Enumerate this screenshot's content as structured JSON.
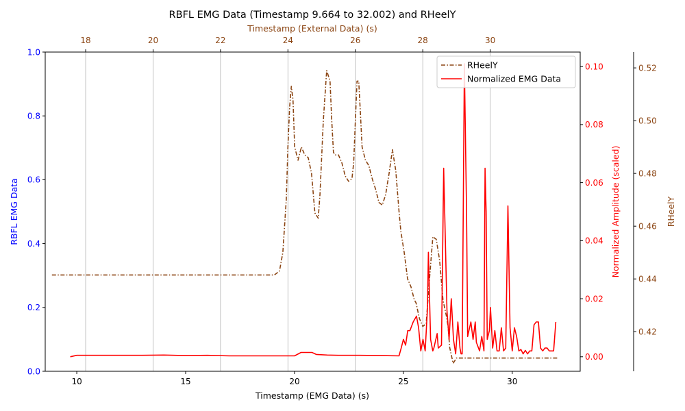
{
  "chart_data": {
    "type": "line",
    "title": "RBFL EMG Data (Timestamp 9.664 to 32.002) and RHeelY",
    "x_bottom": {
      "label": "Timestamp (EMG Data) (s)",
      "range": [
        8.55,
        33.12
      ],
      "ticks": [
        10,
        15,
        20,
        25,
        30
      ],
      "tick_labels": [
        "10",
        "15",
        "20",
        "25",
        "30"
      ],
      "color": "#000000"
    },
    "x_top": {
      "label": "Timestamp (External Data) (s)",
      "range": [
        16.8,
        32.67
      ],
      "ticks": [
        18,
        20,
        22,
        24,
        26,
        28,
        30
      ],
      "tick_labels": [
        "18",
        "20",
        "22",
        "24",
        "26",
        "28",
        "30"
      ],
      "color": "#8B4513",
      "grid": true
    },
    "y_left": {
      "label": "RBFL EMG Data",
      "range": [
        0,
        1
      ],
      "ticks": [
        0,
        0.2,
        0.4,
        0.6,
        0.8,
        1.0
      ],
      "tick_labels": [
        "0.0",
        "0.2",
        "0.4",
        "0.6",
        "0.8",
        "1.0"
      ],
      "color": "#0000ff"
    },
    "y_right1": {
      "label": "Normalized Amplitude (scaled)",
      "range": [
        -0.005,
        0.105
      ],
      "ticks": [
        0,
        0.02,
        0.04,
        0.06,
        0.08,
        0.1
      ],
      "tick_labels": [
        "0.00",
        "0.02",
        "0.04",
        "0.06",
        "0.08",
        "0.10"
      ],
      "color": "#ff0000"
    },
    "y_right2": {
      "label": "RHeelY",
      "range": [
        0.405,
        0.526
      ],
      "ticks": [
        0.42,
        0.44,
        0.46,
        0.48,
        0.5,
        0.52
      ],
      "tick_labels": [
        "0.42",
        "0.44",
        "0.46",
        "0.48",
        "0.50",
        "0.52"
      ],
      "color": "#8B4513"
    },
    "legend": {
      "position": "top-right",
      "entries": [
        "RHeelY",
        "Normalized EMG Data"
      ]
    },
    "series": [
      {
        "name": "RHeelY",
        "axis": "x_top/y_right2",
        "color": "#8B4513",
        "style": "dashdot",
        "x": [
          17.0,
          18.0,
          19.0,
          20.0,
          21.0,
          22.0,
          23.0,
          23.4,
          23.6,
          23.75,
          23.85,
          23.95,
          24.0,
          24.05,
          24.1,
          24.15,
          24.2,
          24.3,
          24.4,
          24.5,
          24.6,
          24.7,
          24.8,
          24.9,
          24.95,
          25.05,
          25.15,
          25.25,
          25.3,
          25.35,
          25.4,
          25.5,
          25.6,
          25.7,
          25.8,
          25.9,
          25.95,
          26.0,
          26.05,
          26.1,
          26.15,
          26.2,
          26.3,
          26.4,
          26.5,
          26.6,
          26.7,
          26.8,
          26.9,
          27.0,
          27.1,
          27.2,
          27.3,
          27.35,
          27.45,
          27.55,
          27.65,
          27.75,
          27.8,
          27.9,
          28.0,
          28.1,
          28.2,
          28.3,
          28.4,
          28.5,
          28.6,
          28.7,
          28.75,
          28.8,
          28.9,
          29.0,
          29.5,
          30.0,
          31.0,
          32.0
        ],
        "values": [
          0.4415,
          0.4415,
          0.4415,
          0.4415,
          0.4415,
          0.4415,
          0.4415,
          0.4415,
          0.4415,
          0.443,
          0.45,
          0.47,
          0.49,
          0.505,
          0.513,
          0.508,
          0.49,
          0.485,
          0.49,
          0.487,
          0.486,
          0.48,
          0.465,
          0.463,
          0.472,
          0.5,
          0.519,
          0.515,
          0.5,
          0.488,
          0.487,
          0.487,
          0.484,
          0.479,
          0.477,
          0.478,
          0.484,
          0.5,
          0.515,
          0.515,
          0.503,
          0.49,
          0.485,
          0.483,
          0.478,
          0.474,
          0.469,
          0.468,
          0.472,
          0.48,
          0.489,
          0.481,
          0.465,
          0.458,
          0.45,
          0.44,
          0.437,
          0.432,
          0.431,
          0.425,
          0.422,
          0.423,
          0.44,
          0.456,
          0.455,
          0.447,
          0.432,
          0.426,
          0.422,
          0.414,
          0.408,
          0.41,
          0.41,
          0.41,
          0.41,
          0.41
        ]
      },
      {
        "name": "Normalized EMG Data",
        "axis": "x_bottom/y_right1",
        "color": "#ff0000",
        "style": "solid",
        "x": [
          9.7,
          10.0,
          11.0,
          12.0,
          13.0,
          14.0,
          15.0,
          16.0,
          17.0,
          18.0,
          19.0,
          20.0,
          20.3,
          20.8,
          21.0,
          21.5,
          22.0,
          23.0,
          24.0,
          24.8,
          24.9,
          25.0,
          25.1,
          25.2,
          25.3,
          25.45,
          25.6,
          25.7,
          25.8,
          25.9,
          26.0,
          26.1,
          26.15,
          26.25,
          26.35,
          26.4,
          26.55,
          26.6,
          26.75,
          26.85,
          27.0,
          27.1,
          27.2,
          27.3,
          27.4,
          27.5,
          27.6,
          27.65,
          27.7,
          27.8,
          27.9,
          27.95,
          28.1,
          28.2,
          28.3,
          28.35,
          28.5,
          28.6,
          28.7,
          28.75,
          28.8,
          28.85,
          28.95,
          29.0,
          29.1,
          29.2,
          29.3,
          29.4,
          29.5,
          29.6,
          29.7,
          29.8,
          29.9,
          30.0,
          30.1,
          30.2,
          30.3,
          30.4,
          30.5,
          30.6,
          30.7,
          30.8,
          30.9,
          31.0,
          31.1,
          31.2,
          31.3,
          31.4,
          31.5,
          31.6,
          31.7,
          31.8,
          31.9,
          32.0
        ],
        "values": [
          0.0,
          0.0005,
          0.0005,
          0.0005,
          0.0005,
          0.0006,
          0.0004,
          0.0005,
          0.0003,
          0.0003,
          0.0003,
          0.0003,
          0.0015,
          0.0015,
          0.0008,
          0.0006,
          0.0005,
          0.0005,
          0.0004,
          0.0003,
          0.003,
          0.006,
          0.004,
          0.009,
          0.009,
          0.012,
          0.014,
          0.01,
          0.002,
          0.006,
          0.002,
          0.016,
          0.036,
          0.006,
          0.002,
          0.003,
          0.008,
          0.003,
          0.004,
          0.065,
          0.016,
          0.006,
          0.02,
          0.006,
          0.001,
          0.012,
          0.003,
          0.001,
          0.001,
          0.101,
          0.05,
          0.007,
          0.012,
          0.006,
          0.012,
          0.005,
          0.002,
          0.007,
          0.002,
          0.065,
          0.05,
          0.006,
          0.009,
          0.017,
          0.003,
          0.009,
          0.002,
          0.002,
          0.01,
          0.002,
          0.003,
          0.052,
          0.01,
          0.002,
          0.01,
          0.007,
          0.002,
          0.0025,
          0.001,
          0.0022,
          0.001,
          0.002,
          0.002,
          0.011,
          0.012,
          0.012,
          0.003,
          0.002,
          0.003,
          0.003,
          0.002,
          0.002,
          0.002,
          0.012
        ]
      }
    ]
  }
}
